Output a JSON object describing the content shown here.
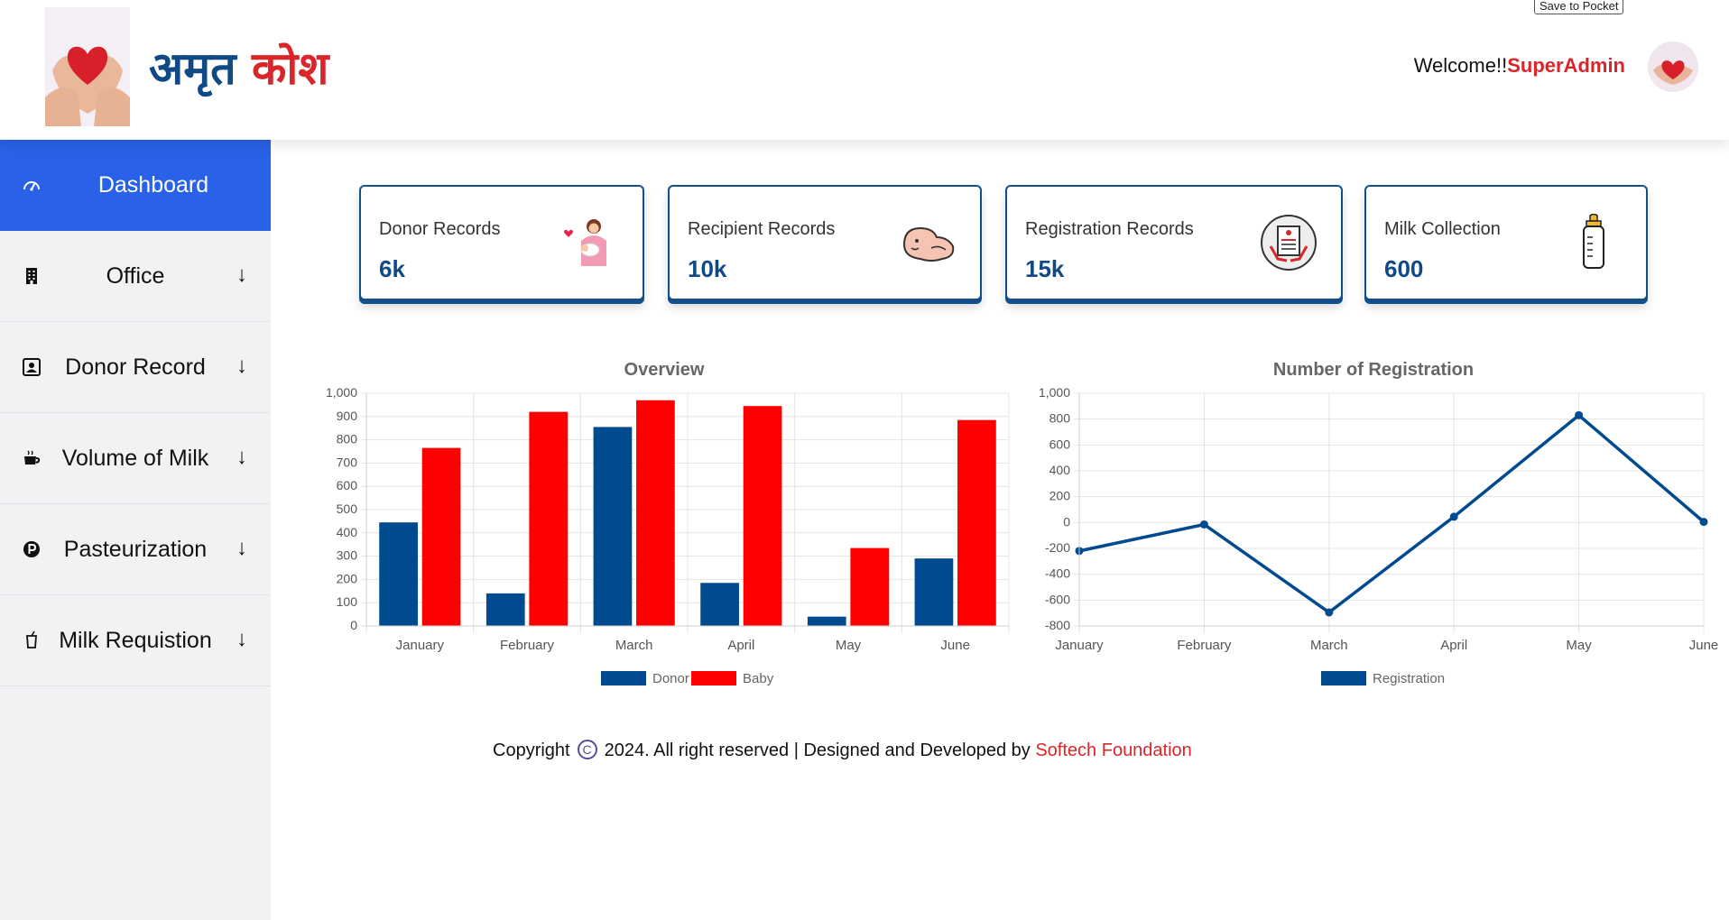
{
  "header": {
    "logo_text_part1": "अमृत",
    "logo_text_part2": "कोश",
    "save_to_pocket": "Save to Pocket",
    "welcome_prefix": "Welcome!!",
    "user_name": "SuperAdmin"
  },
  "sidebar": {
    "items": [
      {
        "label": "Dashboard",
        "icon": "speedometer-icon",
        "active": true
      },
      {
        "label": "Office",
        "icon": "building-icon",
        "arrow": "↓"
      },
      {
        "label": "Donor Record",
        "icon": "person-badge-icon",
        "arrow": "↓"
      },
      {
        "label": "Volume of Milk",
        "icon": "cup-icon",
        "arrow": "↓"
      },
      {
        "label": "Pasteurization",
        "icon": "p-circle-icon",
        "arrow": "↓"
      },
      {
        "label": "Milk Requistion",
        "icon": "glass-icon",
        "arrow": "↓"
      }
    ]
  },
  "cards": [
    {
      "title": "Donor Records",
      "value": "6k",
      "icon": "mother-baby-icon"
    },
    {
      "title": "Recipient Records",
      "value": "10k",
      "icon": "infant-icon"
    },
    {
      "title": "Registration Records",
      "value": "15k",
      "icon": "registration-form-icon"
    },
    {
      "title": "Milk Collection",
      "value": "600",
      "icon": "milk-bottle-icon"
    }
  ],
  "chart_data": [
    {
      "type": "bar",
      "title": "Overview",
      "categories": [
        "January",
        "February",
        "March",
        "April",
        "May",
        "June"
      ],
      "series": [
        {
          "name": "Donor",
          "color": "#004a8f",
          "values": [
            445,
            140,
            855,
            185,
            40,
            290
          ]
        },
        {
          "name": "Baby",
          "color": "#ff0000",
          "values": [
            765,
            920,
            970,
            945,
            335,
            885
          ]
        }
      ],
      "ylim": [
        0,
        1000
      ],
      "yticks": [
        "0",
        "100",
        "200",
        "300",
        "400",
        "500",
        "600",
        "700",
        "800",
        "900",
        "1,000"
      ],
      "grid": true,
      "legend": "bottom"
    },
    {
      "type": "line",
      "title": "Number of Registration",
      "categories": [
        "January",
        "February",
        "March",
        "April",
        "May",
        "June"
      ],
      "series": [
        {
          "name": "Registration",
          "color": "#004a8f",
          "values": [
            -220,
            -15,
            -695,
            45,
            830,
            5
          ]
        }
      ],
      "ylim": [
        -800,
        1000
      ],
      "yticks": [
        "-800",
        "-600",
        "-400",
        "-200",
        "0",
        "200",
        "400",
        "600",
        "800",
        "1,000"
      ],
      "grid": true,
      "legend": "bottom"
    }
  ],
  "footer": {
    "copyright": "Copyright",
    "symbol": "C",
    "rights": "2024. All right reserved | Designed and Developed by",
    "company": "Softech Foundation"
  }
}
